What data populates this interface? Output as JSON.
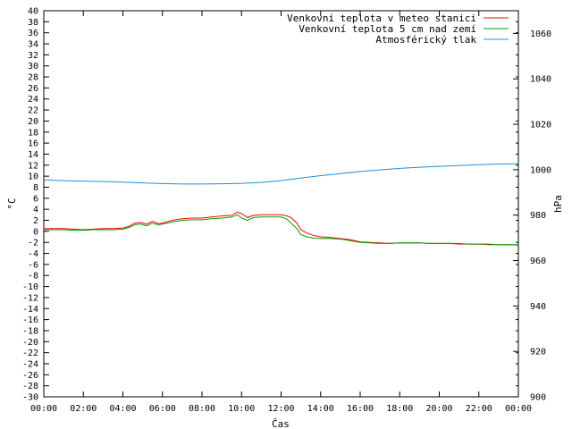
{
  "chart_data": {
    "type": "line",
    "xlabel": "Čas",
    "ylabel": "°C",
    "y2label": "hPa",
    "x_tick_labels": [
      "00:00",
      "02:00",
      "04:00",
      "06:00",
      "08:00",
      "10:00",
      "12:00",
      "14:00",
      "16:00",
      "18:00",
      "20:00",
      "22:00",
      "00:00"
    ],
    "xlim_hours": [
      0,
      24
    ],
    "ylim": [
      -30,
      40
    ],
    "y_tick_step": 2,
    "y2lim": [
      900,
      1070
    ],
    "y2_ticks": [
      900,
      920,
      940,
      960,
      980,
      1000,
      1020,
      1040,
      1060
    ],
    "grid": false,
    "legend_position": "top-right",
    "series": [
      {
        "name": "Venkovní teplota v meteo stanici",
        "color": "#ff0000",
        "axis": "left",
        "x": [
          0,
          0.5,
          1,
          1.5,
          2,
          2.5,
          3,
          3.5,
          4,
          4.3,
          4.6,
          4.9,
          5.2,
          5.5,
          5.8,
          6,
          6.5,
          7,
          7.5,
          8,
          8.5,
          9,
          9.5,
          9.8,
          10,
          10.3,
          10.6,
          11,
          11.5,
          12,
          12.3,
          12.5,
          12.8,
          13,
          13.3,
          13.6,
          14,
          14.5,
          15,
          15.5,
          16,
          16.5,
          17,
          17.5,
          18,
          18.5,
          19,
          19.5,
          20,
          20.5,
          21,
          21.5,
          22,
          22.5,
          23,
          23.5,
          24
        ],
        "values": [
          0.5,
          0.5,
          0.5,
          0.4,
          0.3,
          0.4,
          0.5,
          0.5,
          0.6,
          0.9,
          1.5,
          1.6,
          1.3,
          1.8,
          1.4,
          1.5,
          2.0,
          2.3,
          2.4,
          2.4,
          2.6,
          2.8,
          2.9,
          3.5,
          3.2,
          2.5,
          2.9,
          3.0,
          3.0,
          3.0,
          2.8,
          2.5,
          1.5,
          0.3,
          -0.3,
          -0.7,
          -1.0,
          -1.1,
          -1.3,
          -1.5,
          -1.9,
          -2.0,
          -2.1,
          -2.2,
          -2.1,
          -2.1,
          -2.1,
          -2.2,
          -2.2,
          -2.2,
          -2.3,
          -2.3,
          -2.3,
          -2.4,
          -2.4,
          -2.4,
          -2.5
        ]
      },
      {
        "name": "Venkovní teplota 5 cm nad zemí",
        "color": "#00a000",
        "axis": "left",
        "x": [
          0,
          0.5,
          1,
          1.5,
          2,
          2.5,
          3,
          3.5,
          4,
          4.3,
          4.6,
          4.9,
          5.2,
          5.5,
          5.8,
          6,
          6.5,
          7,
          7.5,
          8,
          8.5,
          9,
          9.5,
          9.8,
          10,
          10.3,
          10.6,
          11,
          11.5,
          12,
          12.3,
          12.5,
          12.8,
          13,
          13.3,
          13.6,
          14,
          14.5,
          15,
          15.5,
          16,
          16.5,
          17,
          17.5,
          18,
          18.5,
          19,
          19.5,
          20,
          20.5,
          21,
          21.5,
          22,
          22.5,
          23,
          23.5,
          24
        ],
        "values": [
          0.3,
          0.3,
          0.3,
          0.2,
          0.2,
          0.3,
          0.3,
          0.3,
          0.4,
          0.7,
          1.2,
          1.3,
          1.0,
          1.5,
          1.2,
          1.3,
          1.7,
          2.0,
          2.1,
          2.1,
          2.3,
          2.4,
          2.6,
          3.0,
          2.4,
          2.0,
          2.5,
          2.6,
          2.6,
          2.6,
          2.2,
          1.5,
          0.5,
          -0.6,
          -1.0,
          -1.2,
          -1.3,
          -1.3,
          -1.4,
          -1.7,
          -2.0,
          -2.1,
          -2.2,
          -2.2,
          -2.1,
          -2.1,
          -2.1,
          -2.2,
          -2.2,
          -2.2,
          -2.2,
          -2.3,
          -2.3,
          -2.3,
          -2.4,
          -2.4,
          -2.4
        ]
      },
      {
        "name": "Atmosférický tlak",
        "color": "#1f8fd6",
        "axis": "right",
        "x": [
          0,
          1,
          2,
          3,
          4,
          5,
          6,
          7,
          8,
          9,
          10,
          11,
          12,
          13,
          14,
          15,
          16,
          17,
          18,
          19,
          20,
          21,
          22,
          23,
          24
        ],
        "values": [
          995.5,
          995.2,
          995.0,
          994.8,
          994.5,
          994.2,
          993.9,
          993.7,
          993.7,
          993.8,
          994.0,
          994.4,
          995.2,
          996.3,
          997.4,
          998.3,
          999.2,
          999.9,
          1000.6,
          1001.1,
          1001.5,
          1001.8,
          1002.2,
          1002.5,
          1002.6
        ]
      }
    ]
  }
}
